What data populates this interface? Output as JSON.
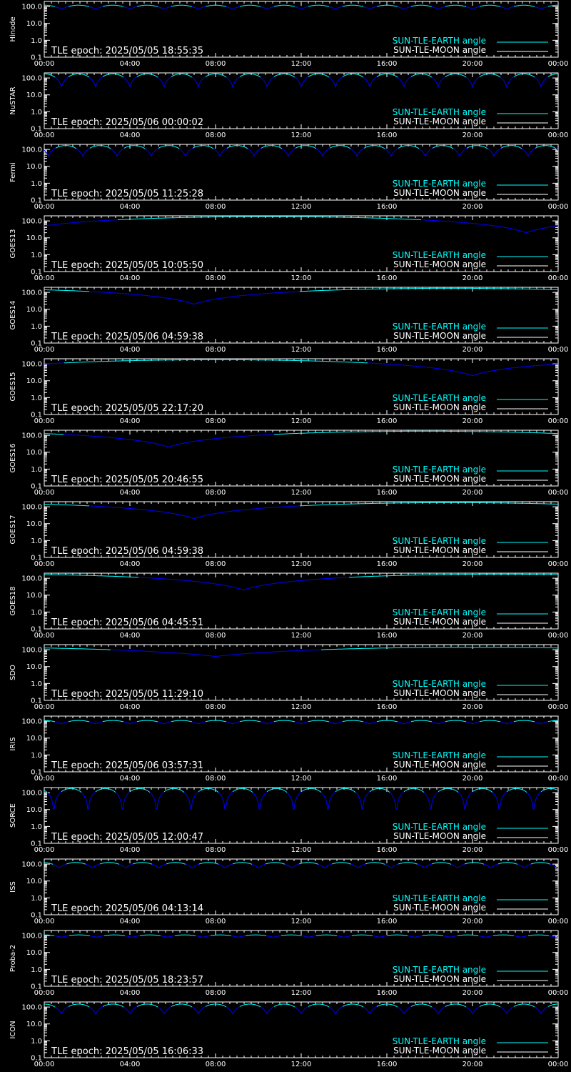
{
  "colors": {
    "background": "#000000",
    "axes": "#ffffff",
    "sun_tle_earth": "#00ffff",
    "sun_tle_moon": "#ffffff",
    "curve_low": "#0000ff"
  },
  "legend": {
    "earth_label": "SUN-TLE-EARTH angle",
    "moon_label": "SUN-TLE-MOON angle",
    "placement": "bottom-right"
  },
  "chart_data": [
    {
      "type": "line",
      "ylabel": "Hinode",
      "epoch": "TLE epoch: 2025/05/05 18:55:35",
      "x": [
        "00:00",
        "04:00",
        "08:00",
        "12:00",
        "16:00",
        "20:00",
        "00:00"
      ],
      "xlim": [
        "00:00",
        "24:00"
      ],
      "ylog": true,
      "ylim": [
        0.1,
        200
      ],
      "yticks": [
        "100.0",
        "10.0",
        "1.0",
        "0.1"
      ],
      "series": [
        {
          "type": "periodic",
          "period_hours": 1.6,
          "phase_hours": 0.8,
          "min_deg": 70,
          "max_deg": 120
        }
      ]
    },
    {
      "type": "line",
      "ylabel": "NuSTAR",
      "epoch": "TLE epoch: 2025/05/06 00:00:02",
      "x": [
        "00:00",
        "04:00",
        "08:00",
        "12:00",
        "16:00",
        "20:00",
        "00:00"
      ],
      "xlim": [
        "00:00",
        "24:00"
      ],
      "ylog": true,
      "ylim": [
        0.1,
        200
      ],
      "yticks": [
        "100.0",
        "10.0",
        "1.0",
        "0.1"
      ],
      "series": [
        {
          "type": "periodic",
          "period_hours": 1.6,
          "phase_hours": 0.8,
          "min_deg": 30,
          "max_deg": 175
        }
      ]
    },
    {
      "type": "line",
      "ylabel": "Fermi",
      "epoch": "TLE epoch: 2025/05/05 11:25:28",
      "x": [
        "00:00",
        "04:00",
        "08:00",
        "12:00",
        "16:00",
        "20:00",
        "00:00"
      ],
      "xlim": [
        "00:00",
        "24:00"
      ],
      "ylog": true,
      "ylim": [
        0.1,
        200
      ],
      "yticks": [
        "100.0",
        "10.0",
        "1.0",
        "0.1"
      ],
      "series": [
        {
          "type": "periodic",
          "period_hours": 1.6,
          "phase_hours": 0.2,
          "min_deg": 40,
          "max_deg": 170
        }
      ]
    },
    {
      "type": "line",
      "ylabel": "GOES13",
      "epoch": "TLE epoch: 2025/05/05 10:05:50",
      "x": [
        "00:00",
        "04:00",
        "08:00",
        "12:00",
        "16:00",
        "20:00",
        "00:00"
      ],
      "xlim": [
        "00:00",
        "24:00"
      ],
      "ylog": true,
      "ylim": [
        0.1,
        200
      ],
      "yticks": [
        "100.0",
        "10.0",
        "1.0",
        "0.1"
      ],
      "series": [
        {
          "type": "daily",
          "min_hour": 22.5,
          "min_deg": 20,
          "max_deg": 180
        }
      ]
    },
    {
      "type": "line",
      "ylabel": "GOES14",
      "epoch": "TLE epoch: 2025/05/06 04:59:38",
      "x": [
        "00:00",
        "04:00",
        "08:00",
        "12:00",
        "16:00",
        "20:00",
        "00:00"
      ],
      "xlim": [
        "00:00",
        "24:00"
      ],
      "ylog": true,
      "ylim": [
        0.1,
        200
      ],
      "yticks": [
        "100.0",
        "10.0",
        "1.0",
        "0.1"
      ],
      "series": [
        {
          "type": "daily",
          "min_hour": 7.0,
          "min_deg": 20,
          "max_deg": 175
        }
      ]
    },
    {
      "type": "line",
      "ylabel": "GOES15",
      "epoch": "TLE epoch: 2025/05/05 22:17:20",
      "x": [
        "00:00",
        "04:00",
        "08:00",
        "12:00",
        "16:00",
        "20:00",
        "00:00"
      ],
      "xlim": [
        "00:00",
        "24:00"
      ],
      "ylog": true,
      "ylim": [
        0.1,
        200
      ],
      "yticks": [
        "100.0",
        "10.0",
        "1.0",
        "0.1"
      ],
      "series": [
        {
          "type": "daily",
          "min_hour": 20.0,
          "min_deg": 20,
          "max_deg": 175
        }
      ]
    },
    {
      "type": "line",
      "ylabel": "GOES16",
      "epoch": "TLE epoch: 2025/05/05 20:46:55",
      "x": [
        "00:00",
        "04:00",
        "08:00",
        "12:00",
        "16:00",
        "20:00",
        "00:00"
      ],
      "xlim": [
        "00:00",
        "24:00"
      ],
      "ylog": true,
      "ylim": [
        0.1,
        200
      ],
      "yticks": [
        "100.0",
        "10.0",
        "1.0",
        "0.1"
      ],
      "series": [
        {
          "type": "daily",
          "min_hour": 5.8,
          "min_deg": 20,
          "max_deg": 175
        }
      ]
    },
    {
      "type": "line",
      "ylabel": "GOES17",
      "epoch": "TLE epoch: 2025/05/06 04:59:38",
      "x": [
        "00:00",
        "04:00",
        "08:00",
        "12:00",
        "16:00",
        "20:00",
        "00:00"
      ],
      "xlim": [
        "00:00",
        "24:00"
      ],
      "ylog": true,
      "ylim": [
        0.1,
        200
      ],
      "yticks": [
        "100.0",
        "10.0",
        "1.0",
        "0.1"
      ],
      "series": [
        {
          "type": "daily",
          "min_hour": 7.0,
          "min_deg": 20,
          "max_deg": 175
        }
      ]
    },
    {
      "type": "line",
      "ylabel": "GOES18",
      "epoch": "TLE epoch: 2025/05/06 04:45:51",
      "x": [
        "00:00",
        "04:00",
        "08:00",
        "12:00",
        "16:00",
        "20:00",
        "00:00"
      ],
      "xlim": [
        "00:00",
        "24:00"
      ],
      "ylog": true,
      "ylim": [
        0.1,
        200
      ],
      "yticks": [
        "100.0",
        "10.0",
        "1.0",
        "0.1"
      ],
      "series": [
        {
          "type": "daily",
          "min_hour": 9.3,
          "min_deg": 20,
          "max_deg": 175
        }
      ]
    },
    {
      "type": "line",
      "ylabel": "SDO",
      "epoch": "TLE epoch: 2025/05/05 11:29:10",
      "x": [
        "00:00",
        "04:00",
        "08:00",
        "12:00",
        "16:00",
        "20:00",
        "00:00"
      ],
      "xlim": [
        "00:00",
        "24:00"
      ],
      "ylog": true,
      "ylim": [
        0.1,
        200
      ],
      "yticks": [
        "100.0",
        "10.0",
        "1.0",
        "0.1"
      ],
      "series": [
        {
          "type": "daily",
          "min_hour": 8.0,
          "min_deg": 40,
          "max_deg": 140
        }
      ]
    },
    {
      "type": "line",
      "ylabel": "IRIS",
      "epoch": "TLE epoch: 2025/05/06 03:57:31",
      "x": [
        "00:00",
        "04:00",
        "08:00",
        "12:00",
        "16:00",
        "20:00",
        "00:00"
      ],
      "xlim": [
        "00:00",
        "24:00"
      ],
      "ylog": true,
      "ylim": [
        0.1,
        200
      ],
      "yticks": [
        "100.0",
        "10.0",
        "1.0",
        "0.1"
      ],
      "series": [
        {
          "type": "periodic",
          "period_hours": 1.6,
          "phase_hours": 0.8,
          "min_deg": 70,
          "max_deg": 110
        }
      ]
    },
    {
      "type": "line",
      "ylabel": "SORCE",
      "epoch": "TLE epoch: 2025/05/05 12:00:47",
      "x": [
        "00:00",
        "04:00",
        "08:00",
        "12:00",
        "16:00",
        "20:00",
        "00:00"
      ],
      "xlim": [
        "00:00",
        "24:00"
      ],
      "ylog": true,
      "ylim": [
        0.1,
        200
      ],
      "yticks": [
        "100.0",
        "10.0",
        "1.0",
        "0.1"
      ],
      "series": [
        {
          "type": "periodic",
          "period_hours": 1.6,
          "phase_hours": 0.45,
          "min_deg": 5,
          "max_deg": 175
        }
      ]
    },
    {
      "type": "line",
      "ylabel": "ISS",
      "epoch": "TLE epoch: 2025/05/06 04:13:14",
      "x": [
        "00:00",
        "04:00",
        "08:00",
        "12:00",
        "16:00",
        "20:00",
        "00:00"
      ],
      "xlim": [
        "00:00",
        "24:00"
      ],
      "ylog": true,
      "ylim": [
        0.1,
        200
      ],
      "yticks": [
        "100.0",
        "10.0",
        "1.0",
        "0.1"
      ],
      "series": [
        {
          "type": "periodic",
          "period_hours": 1.55,
          "phase_hours": 0.7,
          "min_deg": 60,
          "max_deg": 125
        }
      ]
    },
    {
      "type": "line",
      "ylabel": "Proba-2",
      "epoch": "TLE epoch: 2025/05/05 18:23:57",
      "x": [
        "00:00",
        "04:00",
        "08:00",
        "12:00",
        "16:00",
        "20:00",
        "00:00"
      ],
      "xlim": [
        "00:00",
        "24:00"
      ],
      "ylog": true,
      "ylim": [
        0.1,
        200
      ],
      "yticks": [
        "100.0",
        "10.0",
        "1.0",
        "0.1"
      ],
      "series": [
        {
          "type": "periodic",
          "period_hours": 1.65,
          "phase_hours": 0.8,
          "min_deg": 80,
          "max_deg": 110
        }
      ]
    },
    {
      "type": "line",
      "ylabel": "ICON",
      "epoch": "TLE epoch: 2025/05/05 16:06:33",
      "x": [
        "00:00",
        "04:00",
        "08:00",
        "12:00",
        "16:00",
        "20:00",
        "00:00"
      ],
      "xlim": [
        "00:00",
        "24:00"
      ],
      "ylog": true,
      "ylim": [
        0.1,
        200
      ],
      "yticks": [
        "100.0",
        "10.0",
        "1.0",
        "0.1"
      ],
      "series": [
        {
          "type": "periodic",
          "period_hours": 1.6,
          "phase_hours": 0.8,
          "min_deg": 40,
          "max_deg": 150
        }
      ]
    }
  ]
}
